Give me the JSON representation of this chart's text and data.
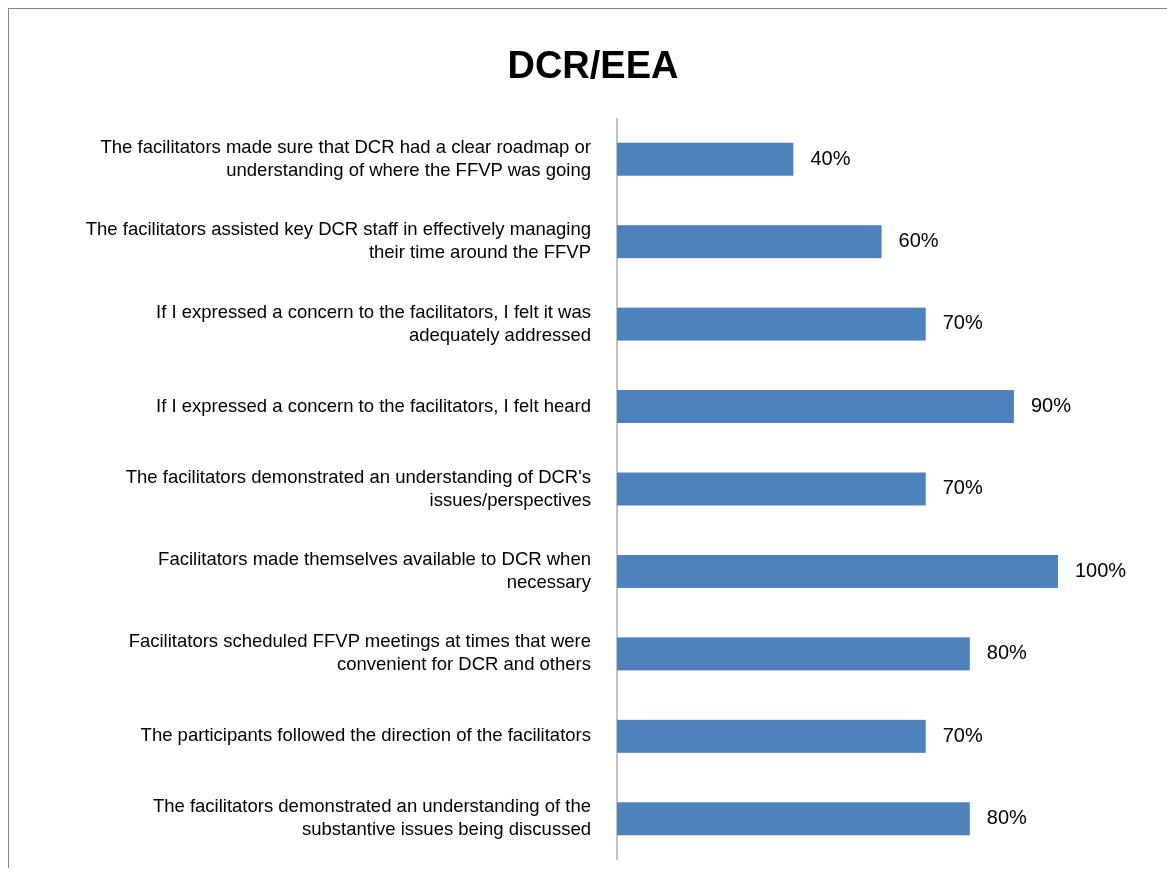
{
  "chart_data": {
    "type": "bar",
    "orientation": "horizontal",
    "title": "DCR/EEA",
    "categories": [
      "The facilitators made sure that DCR had a clear roadmap or understanding of where the FFVP was going",
      "The facilitators assisted key DCR staff in effectively managing their time around the FFVP",
      "If I expressed a concern to the facilitators, I felt it was adequately addressed",
      "If I expressed a concern to the facilitators, I felt heard",
      "The facilitators demonstrated an understanding of DCR's issues/perspectives",
      "Facilitators made themselves available to DCR when necessary",
      "Facilitators scheduled FFVP meetings at times that were convenient for DCR and others",
      "The participants followed the direction of the facilitators",
      "The facilitators demonstrated an understanding of the substantive issues being discussed"
    ],
    "values": [
      40,
      60,
      70,
      90,
      70,
      100,
      80,
      70,
      80
    ],
    "value_labels": [
      "40%",
      "60%",
      "70%",
      "90%",
      "70%",
      "100%",
      "80%",
      "70%",
      "80%"
    ],
    "color": "#4f81bd"
  }
}
